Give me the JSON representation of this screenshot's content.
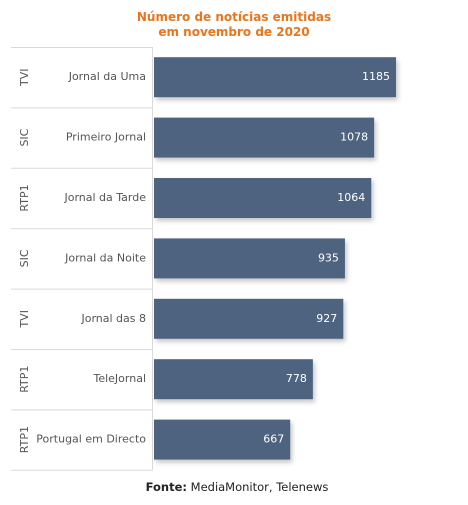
{
  "chart_data": {
    "type": "bar",
    "orientation": "horizontal",
    "title_line1": "Número de notícias emitidas",
    "title_line2": "em novembro de 2020",
    "rows": [
      {
        "channel": "TVI",
        "program": "Jornal da Uma",
        "value": 1185
      },
      {
        "channel": "SIC",
        "program": "Primeiro Jornal",
        "value": 1078
      },
      {
        "channel": "RTP1",
        "program": "Jornal da Tarde",
        "value": 1064
      },
      {
        "channel": "SIC",
        "program": "Jornal da Noite",
        "value": 935
      },
      {
        "channel": "TVI",
        "program": "Jornal das 8",
        "value": 927
      },
      {
        "channel": "RTP1",
        "program": "TeleJornal",
        "value": 778
      },
      {
        "channel": "RTP1",
        "program": "Portugal em Directo",
        "value": 667
      }
    ],
    "xlim": [
      0,
      1200
    ],
    "grid": false,
    "legend": "none"
  },
  "source": {
    "label": "Fonte:",
    "text": "MediaMonitor, Telenews"
  },
  "colors": {
    "bar": "#4e6480",
    "title": "#e8761e",
    "separator": "#d9d9d9",
    "label_text": "#555555",
    "value_text": "#ffffff"
  }
}
